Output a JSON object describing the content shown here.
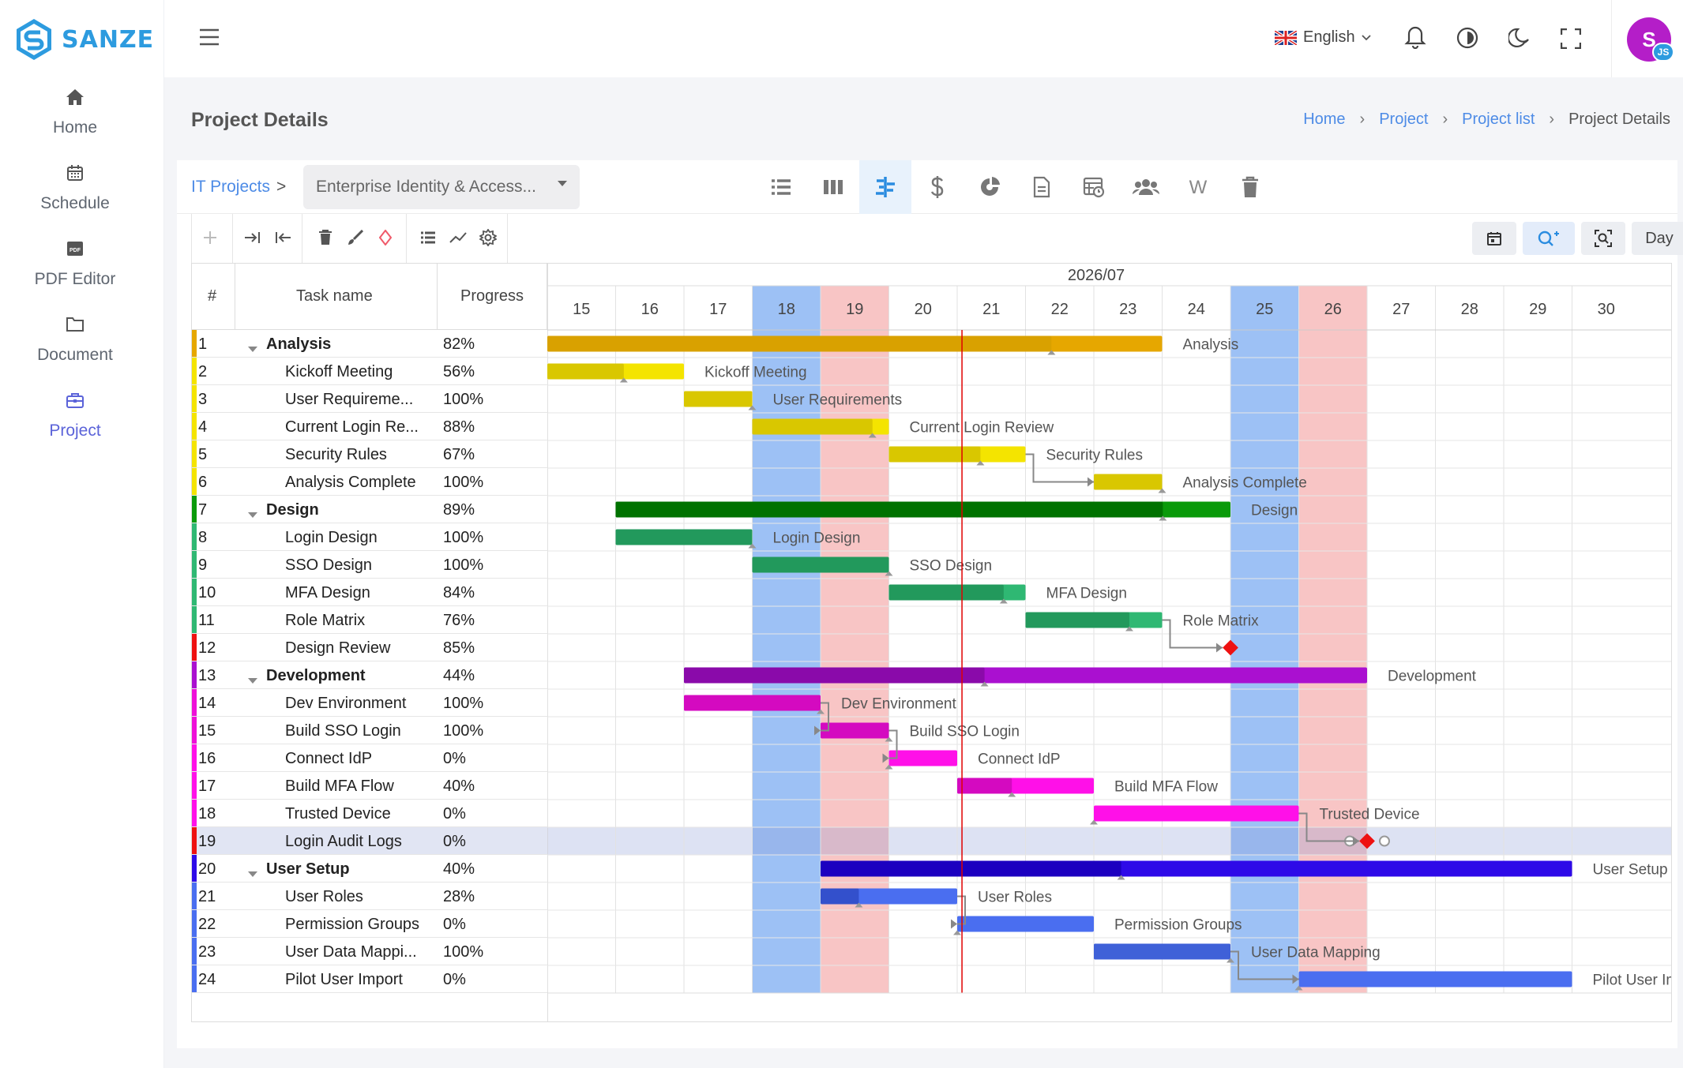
{
  "app": {
    "brand": "SANZE"
  },
  "sidebar": {
    "items": [
      {
        "label": "Home",
        "icon": "home-icon"
      },
      {
        "label": "Schedule",
        "icon": "calendar-icon"
      },
      {
        "label": "PDF Editor",
        "icon": "pdf-icon"
      },
      {
        "label": "Document",
        "icon": "folder-icon"
      },
      {
        "label": "Project",
        "icon": "briefcase-icon"
      }
    ],
    "active": "Project"
  },
  "topbar": {
    "language": "English",
    "avatar_initial": "S",
    "avatar_badge": "JS"
  },
  "page": {
    "title": "Project Details",
    "breadcrumb": [
      "Home",
      "Project",
      "Project list",
      "Project Details"
    ]
  },
  "project": {
    "breadcrumb_root": "IT Projects",
    "breadcrumb_sep": ">",
    "selected_project": "Enterprise Identity & Access..."
  },
  "toolbar": {
    "view_scale": "Day"
  },
  "gantt": {
    "columns": [
      "#",
      "Task name",
      "Progress"
    ],
    "month": "2026/07",
    "days": [
      "15",
      "16",
      "17",
      "18",
      "19",
      "20",
      "21",
      "22",
      "23",
      "24",
      "25",
      "26",
      "27",
      "28",
      "29",
      "30"
    ],
    "weekend_days": {
      "saturday": [
        "18",
        "25"
      ],
      "sunday": [
        "19",
        "26"
      ]
    },
    "today_marker": "21",
    "tasks": [
      {
        "id": "1",
        "name": "Analysis",
        "progress": "82%",
        "group": true,
        "start": 15,
        "end": 24,
        "pct": 82,
        "color": "#e6a700",
        "prog_color": "#d9a100",
        "label": "Analysis"
      },
      {
        "id": "2",
        "name": "Kickoff Meeting",
        "progress": "56%",
        "group": false,
        "start": 15,
        "end": 17,
        "pct": 56,
        "color": "#f4e400",
        "prog_color": "#d9c700",
        "label": "Kickoff Meeting"
      },
      {
        "id": "3",
        "name": "User Requireme...",
        "progress": "100%",
        "group": false,
        "start": 17,
        "end": 18,
        "pct": 100,
        "color": "#f4e400",
        "prog_color": "#d9c700",
        "label": "User Requirements"
      },
      {
        "id": "4",
        "name": "Current Login Re...",
        "progress": "88%",
        "group": false,
        "start": 18,
        "end": 20,
        "pct": 88,
        "color": "#f4e400",
        "prog_color": "#d9c700",
        "label": "Current Login Review"
      },
      {
        "id": "5",
        "name": "Security Rules",
        "progress": "67%",
        "group": false,
        "start": 20,
        "end": 22,
        "pct": 67,
        "color": "#f4e400",
        "prog_color": "#d9c700",
        "label": "Security Rules"
      },
      {
        "id": "6",
        "name": "Analysis Complete",
        "progress": "100%",
        "group": false,
        "start": 23,
        "end": 24,
        "pct": 100,
        "color": "#f4e400",
        "prog_color": "#d9c700",
        "label": "Analysis Complete"
      },
      {
        "id": "7",
        "name": "Design",
        "progress": "89%",
        "group": true,
        "start": 16,
        "end": 25,
        "pct": 89,
        "color": "#0a9a0a",
        "prog_color": "#007200",
        "label": "Design"
      },
      {
        "id": "8",
        "name": "Login Design",
        "progress": "100%",
        "group": false,
        "start": 16,
        "end": 18,
        "pct": 100,
        "color": "#2fb873",
        "prog_color": "#22995c",
        "label": "Login Design"
      },
      {
        "id": "9",
        "name": "SSO Design",
        "progress": "100%",
        "group": false,
        "start": 18,
        "end": 20,
        "pct": 100,
        "color": "#2fb873",
        "prog_color": "#22995c",
        "label": "SSO Design"
      },
      {
        "id": "10",
        "name": "MFA Design",
        "progress": "84%",
        "group": false,
        "start": 20,
        "end": 22,
        "pct": 84,
        "color": "#2fb873",
        "prog_color": "#22995c",
        "label": "MFA Design"
      },
      {
        "id": "11",
        "name": "Role Matrix",
        "progress": "76%",
        "group": false,
        "start": 22,
        "end": 24,
        "pct": 76,
        "color": "#2fb873",
        "prog_color": "#22995c",
        "label": "Role Matrix"
      },
      {
        "id": "12",
        "name": "Design Review",
        "progress": "85%",
        "group": false,
        "milestone": 25,
        "color": "#ee1111",
        "label": ""
      },
      {
        "id": "13",
        "name": "Development",
        "progress": "44%",
        "group": true,
        "start": 17,
        "end": 27,
        "pct": 44,
        "color": "#aa10d0",
        "prog_color": "#8a0aaa",
        "label": "Development"
      },
      {
        "id": "14",
        "name": "Dev Environment",
        "progress": "100%",
        "group": false,
        "start": 17,
        "end": 19,
        "pct": 100,
        "color": "#ee10d8",
        "prog_color": "#d40ac0",
        "label": "Dev Environment"
      },
      {
        "id": "15",
        "name": "Build SSO Login",
        "progress": "100%",
        "group": false,
        "start": 19,
        "end": 20,
        "pct": 100,
        "color": "#ee10d8",
        "prog_color": "#d40ac0",
        "label": "Build SSO Login"
      },
      {
        "id": "16",
        "name": "Connect IdP",
        "progress": "0%",
        "group": false,
        "start": 20,
        "end": 21,
        "pct": 0,
        "color": "#ff10e8",
        "prog_color": "#d40ac0",
        "label": "Connect IdP"
      },
      {
        "id": "17",
        "name": "Build MFA Flow",
        "progress": "40%",
        "group": false,
        "start": 21,
        "end": 23,
        "pct": 40,
        "color": "#ff10e8",
        "prog_color": "#d40ac0",
        "label": "Build MFA Flow"
      },
      {
        "id": "18",
        "name": "Trusted Device",
        "progress": "0%",
        "group": false,
        "start": 23,
        "end": 26,
        "pct": 0,
        "color": "#ff10e8",
        "prog_color": "#d40ac0",
        "label": "Trusted Device"
      },
      {
        "id": "19",
        "name": "Login Audit Logs",
        "progress": "0%",
        "group": false,
        "milestone": 27,
        "color": "#ee1111",
        "label": "",
        "selected": true
      },
      {
        "id": "20",
        "name": "User Setup",
        "progress": "40%",
        "group": true,
        "start": 19,
        "end": 30,
        "pct": 40,
        "color": "#2e0ae8",
        "prog_color": "#1c00c0",
        "label": "User Setup"
      },
      {
        "id": "21",
        "name": "User Roles",
        "progress": "28%",
        "group": false,
        "start": 19,
        "end": 21,
        "pct": 28,
        "color": "#4a6ef0",
        "prog_color": "#3350cc",
        "label": "User Roles"
      },
      {
        "id": "22",
        "name": "Permission Groups",
        "progress": "0%",
        "group": false,
        "start": 21,
        "end": 23,
        "pct": 0,
        "color": "#4a6ef0",
        "prog_color": "#3350cc",
        "label": "Permission Groups"
      },
      {
        "id": "23",
        "name": "User Data Mappi...",
        "progress": "100%",
        "group": false,
        "start": 23,
        "end": 25,
        "pct": 100,
        "color": "#4a6ef0",
        "prog_color": "#3f61d8",
        "label": "User Data Mapping"
      },
      {
        "id": "24",
        "name": "Pilot User Import",
        "progress": "0%",
        "group": false,
        "start": 26,
        "end": 30,
        "pct": 0,
        "color": "#4a6ef0",
        "prog_color": "#3350cc",
        "label": "Pilot User Import"
      }
    ]
  }
}
